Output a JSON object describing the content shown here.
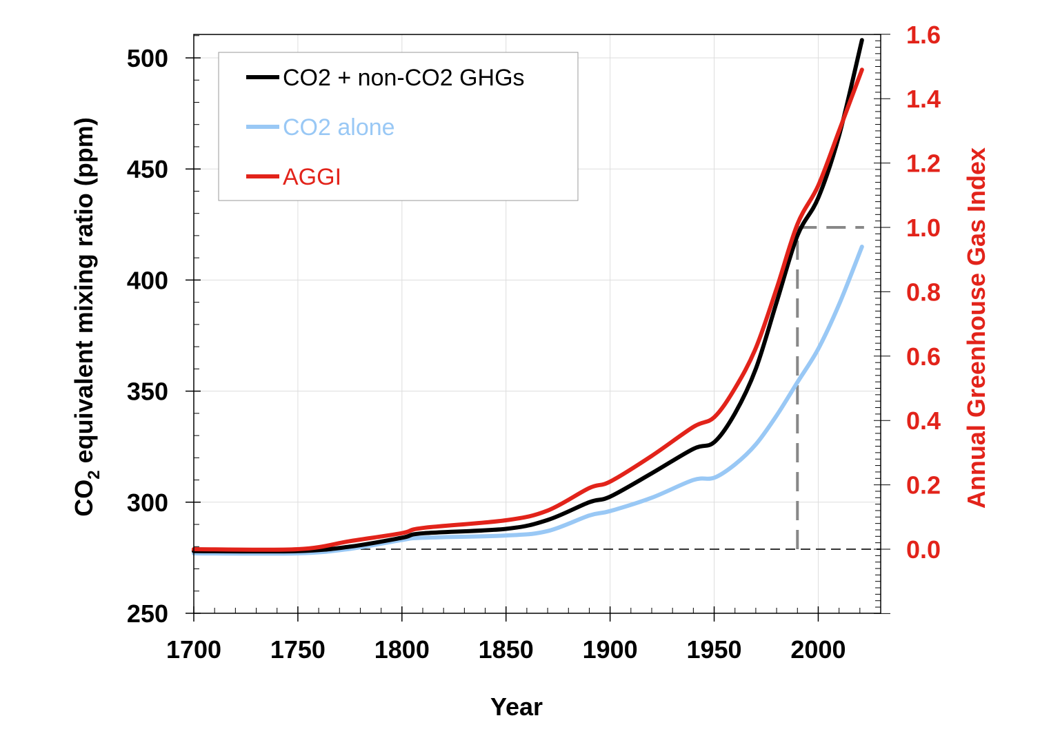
{
  "chart_data": {
    "type": "line",
    "title": "",
    "xlabel": "Year",
    "ylabel": "CO2 equivalent mixing ratio (ppm)",
    "ylabel_parts": {
      "pre": "CO",
      "sub": "2",
      "post": " equivalent mixing ratio (ppm)"
    },
    "y2label": "Annual Greenhouse Gas Index",
    "xlim": [
      1700,
      2030
    ],
    "ylim": [
      250,
      510
    ],
    "y2lim": [
      -0.2,
      1.6
    ],
    "xticks": [
      1700,
      1750,
      1800,
      1850,
      1900,
      1950,
      2000
    ],
    "yticks": [
      250,
      300,
      350,
      400,
      450,
      500
    ],
    "y2ticks": [
      "0.0",
      "0.2",
      "0.4",
      "0.6",
      "0.8",
      "1.0",
      "1.2",
      "1.4",
      "1.6"
    ],
    "grid": true,
    "legend_placement": "top-left",
    "series": [
      {
        "name": "CO2 + non-CO2 GHGs",
        "axis": "left",
        "color": "#000000",
        "x": [
          1700,
          1750,
          1775,
          1800,
          1810,
          1850,
          1870,
          1890,
          1900,
          1920,
          1940,
          1950,
          1960,
          1970,
          1980,
          1990,
          2000,
          2010,
          2021
        ],
        "values": [
          278,
          278,
          280,
          284,
          286,
          288,
          292,
          300,
          302.5,
          313,
          324,
          327,
          340,
          360,
          390,
          420,
          437,
          465,
          508
        ]
      },
      {
        "name": "CO2 alone",
        "axis": "left",
        "color": "#99c8f5",
        "x": [
          1700,
          1750,
          1775,
          1800,
          1810,
          1850,
          1870,
          1890,
          1900,
          1920,
          1940,
          1950,
          1960,
          1970,
          1980,
          1990,
          2000,
          2010,
          2021
        ],
        "values": [
          277,
          277,
          279,
          283,
          284,
          285,
          287,
          294,
          296,
          302,
          310,
          311,
          317,
          326,
          339,
          354,
          369,
          389,
          415
        ]
      },
      {
        "name": "AGGI",
        "axis": "right",
        "color": "#e2231a",
        "x": [
          1700,
          1750,
          1775,
          1800,
          1810,
          1850,
          1870,
          1890,
          1900,
          1920,
          1940,
          1950,
          1960,
          1970,
          1980,
          1990,
          2000,
          2010,
          2021
        ],
        "values": [
          0.0,
          0.0,
          0.025,
          0.05,
          0.066,
          0.09,
          0.12,
          0.19,
          0.21,
          0.29,
          0.38,
          0.41,
          0.5,
          0.625,
          0.81,
          1.01,
          1.13,
          1.3,
          1.49
        ]
      }
    ],
    "reference_lines": [
      {
        "type": "horizontal",
        "axis": "right",
        "value": 0.0,
        "color": "#333333"
      },
      {
        "type": "vertical",
        "x": 1990,
        "from": 0.0,
        "to": 1.0,
        "color": "#888888"
      },
      {
        "type": "horizontal",
        "axis": "right",
        "value": 1.0,
        "from": 1990,
        "to": 2022,
        "color": "#888888"
      }
    ],
    "colors": {
      "right_axis": "#e2231a",
      "axis": "#000000",
      "grid": "#dddddd"
    }
  }
}
